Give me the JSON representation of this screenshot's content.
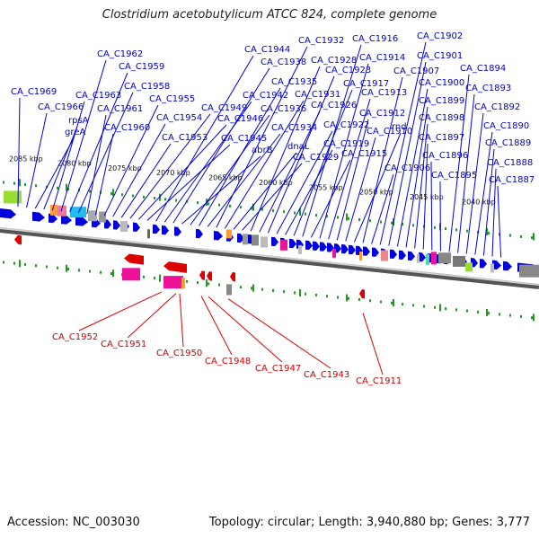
{
  "header": {
    "title": "Clostridium acetobutylicum ATCC 824, complete genome"
  },
  "footer": {
    "accession": "Accession: NC_003030",
    "summary": "Topology: circular; Length: 3,940,880 bp; Genes: 3,777"
  },
  "colors": {
    "forward": "#0000dd",
    "reverse": "#dd0000",
    "backbone": "#888888",
    "ticks": "#229922"
  },
  "kbp_ticks": [
    "2085 kbp",
    "2080 kbp",
    "2075 kbp",
    "2070 kbp",
    "2065 kbp",
    "2060 kbp",
    "2055 kbp",
    "2050 kbp",
    "2045 kbp",
    "2040 kbp"
  ],
  "forward_labels": [
    "CA_C1969",
    "CA_C1966",
    "greA",
    "rpsA",
    "CA_C1963",
    "CA_C1962",
    "CA_C1959",
    "CA_C1958",
    "CA_C1961",
    "CA_C1960",
    "CA_C1955",
    "CA_C1954",
    "CA_C1953",
    "CA_C1949",
    "CA_C1946",
    "CA_C1945",
    "CA_C1944",
    "CA_C1942",
    "CA_C1938",
    "abrB",
    "CA_C1936",
    "CA_C1935",
    "CA_C1934",
    "CA_C1932",
    "CA_C1931",
    "dnaL",
    "CA_C1929",
    "CA_C1928",
    "CA_C1926",
    "CA_C1923",
    "CA_C1922",
    "CA_C1919",
    "CA_C1917",
    "CA_C1916",
    "CA_C1915",
    "CA_C1914",
    "CA_C1913",
    "CA_C1912",
    "CA_C1910",
    "rnd",
    "CA_C1907",
    "CA_C1906",
    "CA_C1902",
    "CA_C1901",
    "CA_C1900",
    "CA_C1899",
    "CA_C1898",
    "CA_C1897",
    "CA_C1896",
    "CA_C1895",
    "CA_C1894",
    "CA_C1893",
    "CA_C1892",
    "CA_C1890",
    "CA_C1889",
    "CA_C1888",
    "CA_C1887"
  ],
  "reverse_labels": [
    "CA_C1952",
    "CA_C1951",
    "CA_C1950",
    "CA_C1948",
    "CA_C1947",
    "CA_C1943",
    "CA_C1911"
  ]
}
